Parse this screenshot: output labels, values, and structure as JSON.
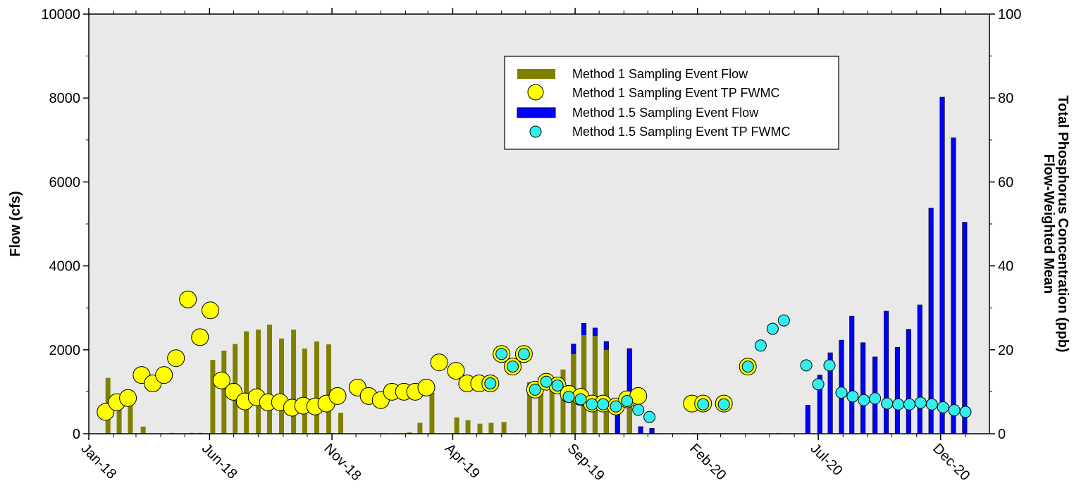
{
  "chart_data": {
    "type": "bar",
    "x_axis": {
      "type": "date",
      "min": "2018-01-01",
      "max": "2021-01-31",
      "tick_labels": [
        "Jan-18",
        "Jun-18",
        "Nov-18",
        "Apr-19",
        "Sep-19",
        "Feb-20",
        "Jul-20",
        "Dec-20"
      ],
      "tick_dates": [
        "2018-01-01",
        "2018-06-01",
        "2018-11-01",
        "2019-04-01",
        "2019-09-01",
        "2020-02-01",
        "2020-07-01",
        "2020-12-01"
      ]
    },
    "y_left": {
      "label": "Flow (cfs)",
      "range": [
        0,
        10000
      ],
      "ticks": [
        0,
        2000,
        4000,
        6000,
        8000,
        10000
      ]
    },
    "y_right": {
      "label_line1": "Flow-Weighted Mean",
      "label_line2": "Total Phosphorus Concentration (ppb)",
      "range": [
        0,
        100
      ],
      "ticks": [
        0,
        20,
        40,
        60,
        80,
        100
      ]
    },
    "legend": {
      "placement": "top-right",
      "entries": [
        "Method 1 Sampling Event Flow",
        "Method 1 Sampling Event TP FWMC",
        "Method 1.5 Sampling Event Flow",
        "Method 1.5 Sampling Event TP FWMC"
      ]
    },
    "grid": false,
    "colors": {
      "plot_bg": "#e9e9e9",
      "m1_bar": "#808000",
      "m15_bar": "#0000ff",
      "m1_circle": "#ffff00",
      "m15_circle": "#33eeee"
    },
    "series": [
      {
        "name": "Method 1 Sampling Event Flow",
        "kind": "bar",
        "points": [
          {
            "x": "2018-01-25",
            "y": 1330
          },
          {
            "x": "2018-02-08",
            "y": 600
          },
          {
            "x": "2018-02-22",
            "y": 700
          },
          {
            "x": "2018-03-10",
            "y": 170
          },
          {
            "x": "2018-04-15",
            "y": 20
          },
          {
            "x": "2018-05-10",
            "y": 20
          },
          {
            "x": "2018-05-20",
            "y": 20
          },
          {
            "x": "2018-06-05",
            "y": 1760
          },
          {
            "x": "2018-06-19",
            "y": 1980
          },
          {
            "x": "2018-07-03",
            "y": 2140
          },
          {
            "x": "2018-07-17",
            "y": 2440
          },
          {
            "x": "2018-08-01",
            "y": 2480
          },
          {
            "x": "2018-08-15",
            "y": 2600
          },
          {
            "x": "2018-08-30",
            "y": 2270
          },
          {
            "x": "2018-09-14",
            "y": 2480
          },
          {
            "x": "2018-09-28",
            "y": 2030
          },
          {
            "x": "2018-10-13",
            "y": 2200
          },
          {
            "x": "2018-10-28",
            "y": 2130
          },
          {
            "x": "2018-11-12",
            "y": 500
          },
          {
            "x": "2019-01-05",
            "y": 15
          },
          {
            "x": "2019-02-06",
            "y": 30
          },
          {
            "x": "2019-02-19",
            "y": 260
          },
          {
            "x": "2019-03-06",
            "y": 980
          },
          {
            "x": "2019-04-06",
            "y": 390
          },
          {
            "x": "2019-04-20",
            "y": 320
          },
          {
            "x": "2019-05-05",
            "y": 240
          },
          {
            "x": "2019-05-19",
            "y": 260
          },
          {
            "x": "2019-06-04",
            "y": 280
          },
          {
            "x": "2019-06-18",
            "y": 15
          },
          {
            "x": "2019-07-06",
            "y": 1230
          },
          {
            "x": "2019-07-20",
            "y": 1230
          },
          {
            "x": "2019-08-03",
            "y": 1320
          },
          {
            "x": "2019-08-17",
            "y": 1530
          },
          {
            "x": "2019-08-30",
            "y": 1900
          },
          {
            "x": "2019-09-12",
            "y": 2350
          },
          {
            "x": "2019-09-26",
            "y": 2330
          },
          {
            "x": "2019-10-10",
            "y": 2000
          },
          {
            "x": "2019-11-08",
            "y": 650
          },
          {
            "x": "2020-01-28",
            "y": 15
          },
          {
            "x": "2020-02-11",
            "y": 15
          },
          {
            "x": "2020-03-08",
            "y": 15
          },
          {
            "x": "2020-05-12",
            "y": 15
          }
        ]
      },
      {
        "name": "Method 1.5 Sampling Event Flow",
        "kind": "bar",
        "points": [
          {
            "x": "2019-07-20",
            "y": 1280
          },
          {
            "x": "2019-08-30",
            "y": 2140
          },
          {
            "x": "2019-09-12",
            "y": 2630
          },
          {
            "x": "2019-09-26",
            "y": 2520
          },
          {
            "x": "2019-10-10",
            "y": 2200
          },
          {
            "x": "2019-10-24",
            "y": 750
          },
          {
            "x": "2019-11-08",
            "y": 2030
          },
          {
            "x": "2019-11-22",
            "y": 170
          },
          {
            "x": "2019-12-06",
            "y": 130
          },
          {
            "x": "2020-06-18",
            "y": 680
          },
          {
            "x": "2020-07-03",
            "y": 1400
          },
          {
            "x": "2020-07-16",
            "y": 1930
          },
          {
            "x": "2020-07-30",
            "y": 2230
          },
          {
            "x": "2020-08-12",
            "y": 2800
          },
          {
            "x": "2020-08-26",
            "y": 2170
          },
          {
            "x": "2020-09-10",
            "y": 1830
          },
          {
            "x": "2020-09-24",
            "y": 2920
          },
          {
            "x": "2020-10-08",
            "y": 2060
          },
          {
            "x": "2020-10-22",
            "y": 2490
          },
          {
            "x": "2020-11-05",
            "y": 3070
          },
          {
            "x": "2020-11-19",
            "y": 5380
          },
          {
            "x": "2020-12-03",
            "y": 8020
          },
          {
            "x": "2020-12-17",
            "y": 7050
          },
          {
            "x": "2020-12-31",
            "y": 5040
          }
        ]
      },
      {
        "name": "Method 1 Sampling Event TP FWMC",
        "kind": "scatter",
        "points": [
          {
            "x": "2018-01-22",
            "y": 5.2
          },
          {
            "x": "2018-02-05",
            "y": 7.5
          },
          {
            "x": "2018-02-19",
            "y": 8.5
          },
          {
            "x": "2018-03-08",
            "y": 14
          },
          {
            "x": "2018-03-22",
            "y": 12
          },
          {
            "x": "2018-04-05",
            "y": 14
          },
          {
            "x": "2018-04-20",
            "y": 18
          },
          {
            "x": "2018-05-05",
            "y": 32
          },
          {
            "x": "2018-05-20",
            "y": 23
          },
          {
            "x": "2018-06-02",
            "y": 29.4
          },
          {
            "x": "2018-06-16",
            "y": 12.7
          },
          {
            "x": "2018-07-01",
            "y": 10
          },
          {
            "x": "2018-07-15",
            "y": 7.7
          },
          {
            "x": "2018-07-30",
            "y": 8.7
          },
          {
            "x": "2018-08-13",
            "y": 7.5
          },
          {
            "x": "2018-08-28",
            "y": 7.5
          },
          {
            "x": "2018-09-12",
            "y": 6.2
          },
          {
            "x": "2018-09-26",
            "y": 6.7
          },
          {
            "x": "2018-10-11",
            "y": 6.5
          },
          {
            "x": "2018-10-25",
            "y": 7.2
          },
          {
            "x": "2018-11-08",
            "y": 9
          },
          {
            "x": "2018-12-03",
            "y": 11
          },
          {
            "x": "2018-12-17",
            "y": 9
          },
          {
            "x": "2019-01-01",
            "y": 8
          },
          {
            "x": "2019-01-15",
            "y": 10
          },
          {
            "x": "2019-01-30",
            "y": 10
          },
          {
            "x": "2019-02-13",
            "y": 10
          },
          {
            "x": "2019-02-27",
            "y": 11
          },
          {
            "x": "2019-03-15",
            "y": 17
          },
          {
            "x": "2019-04-05",
            "y": 15
          },
          {
            "x": "2019-04-19",
            "y": 12
          },
          {
            "x": "2019-05-04",
            "y": 12
          },
          {
            "x": "2019-05-18",
            "y": 12
          },
          {
            "x": "2019-06-01",
            "y": 19
          },
          {
            "x": "2019-06-15",
            "y": 16
          },
          {
            "x": "2019-06-29",
            "y": 19
          },
          {
            "x": "2019-07-13",
            "y": 10.5
          },
          {
            "x": "2019-07-27",
            "y": 12.4
          },
          {
            "x": "2019-08-10",
            "y": 11.5
          },
          {
            "x": "2019-08-24",
            "y": 9.5
          },
          {
            "x": "2019-09-08",
            "y": 8.8
          },
          {
            "x": "2019-09-22",
            "y": 7.2
          },
          {
            "x": "2019-10-06",
            "y": 7.2
          },
          {
            "x": "2019-10-22",
            "y": 6.5
          },
          {
            "x": "2019-11-05",
            "y": 8.2
          },
          {
            "x": "2019-11-19",
            "y": 9
          },
          {
            "x": "2020-01-25",
            "y": 7.2
          },
          {
            "x": "2020-02-08",
            "y": 7.2
          },
          {
            "x": "2020-03-05",
            "y": 7.2
          },
          {
            "x": "2020-04-04",
            "y": 16
          }
        ]
      },
      {
        "name": "Method 1.5 Sampling Event TP FWMC",
        "kind": "scatter",
        "points": [
          {
            "x": "2019-05-18",
            "y": 12
          },
          {
            "x": "2019-06-01",
            "y": 19
          },
          {
            "x": "2019-06-15",
            "y": 16
          },
          {
            "x": "2019-06-29",
            "y": 19
          },
          {
            "x": "2019-07-13",
            "y": 10.5
          },
          {
            "x": "2019-07-27",
            "y": 12.4
          },
          {
            "x": "2019-08-10",
            "y": 11.5
          },
          {
            "x": "2019-08-24",
            "y": 8.8
          },
          {
            "x": "2019-09-08",
            "y": 8.2
          },
          {
            "x": "2019-09-22",
            "y": 7
          },
          {
            "x": "2019-10-06",
            "y": 7
          },
          {
            "x": "2019-10-22",
            "y": 6.5
          },
          {
            "x": "2019-11-05",
            "y": 7.8
          },
          {
            "x": "2019-11-19",
            "y": 5.7
          },
          {
            "x": "2019-12-03",
            "y": 4
          },
          {
            "x": "2020-02-08",
            "y": 7
          },
          {
            "x": "2020-03-05",
            "y": 7
          },
          {
            "x": "2020-04-04",
            "y": 16
          },
          {
            "x": "2020-04-20",
            "y": 21
          },
          {
            "x": "2020-05-05",
            "y": 25
          },
          {
            "x": "2020-05-19",
            "y": 27
          },
          {
            "x": "2020-06-16",
            "y": 16.3
          },
          {
            "x": "2020-07-01",
            "y": 11.8
          },
          {
            "x": "2020-07-15",
            "y": 16.3
          },
          {
            "x": "2020-07-30",
            "y": 9.8
          },
          {
            "x": "2020-08-13",
            "y": 8.9
          },
          {
            "x": "2020-08-27",
            "y": 8
          },
          {
            "x": "2020-09-10",
            "y": 8.4
          },
          {
            "x": "2020-09-25",
            "y": 7.2
          },
          {
            "x": "2020-10-09",
            "y": 7
          },
          {
            "x": "2020-10-23",
            "y": 7
          },
          {
            "x": "2020-11-06",
            "y": 7.4
          },
          {
            "x": "2020-11-20",
            "y": 7
          },
          {
            "x": "2020-12-04",
            "y": 6.3
          },
          {
            "x": "2020-12-18",
            "y": 5.6
          },
          {
            "x": "2021-01-01",
            "y": 5.2
          }
        ]
      }
    ]
  }
}
